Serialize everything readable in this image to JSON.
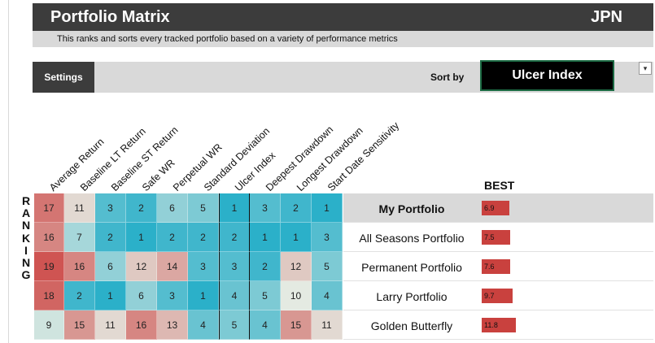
{
  "header": {
    "title": "Portfolio Matrix",
    "country": "JPN"
  },
  "subtitle": "This ranks and sorts every tracked portfolio based on a variety of performance metrics",
  "toolbar": {
    "settings_label": "Settings",
    "sort_by_label": "Sort by",
    "sort_value": "Ulcer Index",
    "dropdown_icon": "chevron-down-icon"
  },
  "columns": [
    "Average Return",
    "Baseline LT Return",
    "Baseline ST Return",
    "Safe WR",
    "Perpetual WR",
    "Standard Deviation",
    "Ulcer Index",
    "Deepest Drawdown",
    "Longest Drawdown",
    "Start Date Sensitivity"
  ],
  "ranking_label": [
    "R",
    "A",
    "N",
    "K",
    "I",
    "N",
    "G"
  ],
  "best_label": "BEST",
  "rows": [
    {
      "name": "My Portfolio",
      "highlight": true,
      "ranks": [
        "17",
        "11",
        "3",
        "2",
        "6",
        "5",
        "1",
        "3",
        "2",
        "1"
      ],
      "value": "6.9",
      "value_num": 6.9
    },
    {
      "name": "All Seasons Portfolio",
      "highlight": false,
      "ranks": [
        "16",
        "7",
        "2",
        "1",
        "2",
        "2",
        "2",
        "1",
        "1",
        "3"
      ],
      "value": "7.5",
      "value_num": 7.5
    },
    {
      "name": "Permanent Portfolio",
      "highlight": false,
      "ranks": [
        "19",
        "16",
        "6",
        "12",
        "14",
        "3",
        "3",
        "2",
        "12",
        "5"
      ],
      "value": "7.6",
      "value_num": 7.6
    },
    {
      "name": "Larry Portfolio",
      "highlight": false,
      "ranks": [
        "18",
        "2",
        "1",
        "6",
        "3",
        "1",
        "4",
        "5",
        "10",
        "4"
      ],
      "value": "9.7",
      "value_num": 9.7
    },
    {
      "name": "Golden Butterfly",
      "highlight": false,
      "ranks": [
        "9",
        "15",
        "11",
        "16",
        "13",
        "4",
        "5",
        "4",
        "15",
        "11"
      ],
      "value": "11.8",
      "value_num": 11.8
    }
  ],
  "colors": {
    "header_bg": "#3c3c3c",
    "band_bg": "#d9d9d9",
    "sort_bg": "#000000",
    "sort_border": "#1d6b44",
    "value_bar": "#c9413e"
  }
}
